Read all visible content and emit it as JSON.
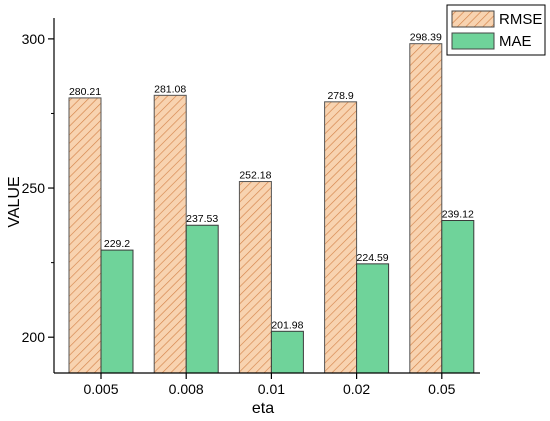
{
  "chart_data": {
    "type": "bar",
    "xlabel": "eta",
    "ylabel": "VALUE",
    "categories": [
      "0.005",
      "0.008",
      "0.01",
      "0.02",
      "0.05"
    ],
    "ylim": [
      188,
      307
    ],
    "yticks": [
      200,
      250,
      300
    ],
    "grid": false,
    "legend": "top-right",
    "series": [
      {
        "name": "RMSE",
        "values": [
          280.21,
          281.08,
          252.18,
          278.9,
          298.39
        ],
        "color": "#F6C9A0",
        "pattern": "hatched",
        "pattern_color": "#D4844A"
      },
      {
        "name": "MAE",
        "values": [
          229.2,
          237.53,
          201.98,
          224.59,
          239.12
        ],
        "color": "#6FD39A",
        "pattern": "solid"
      }
    ]
  }
}
